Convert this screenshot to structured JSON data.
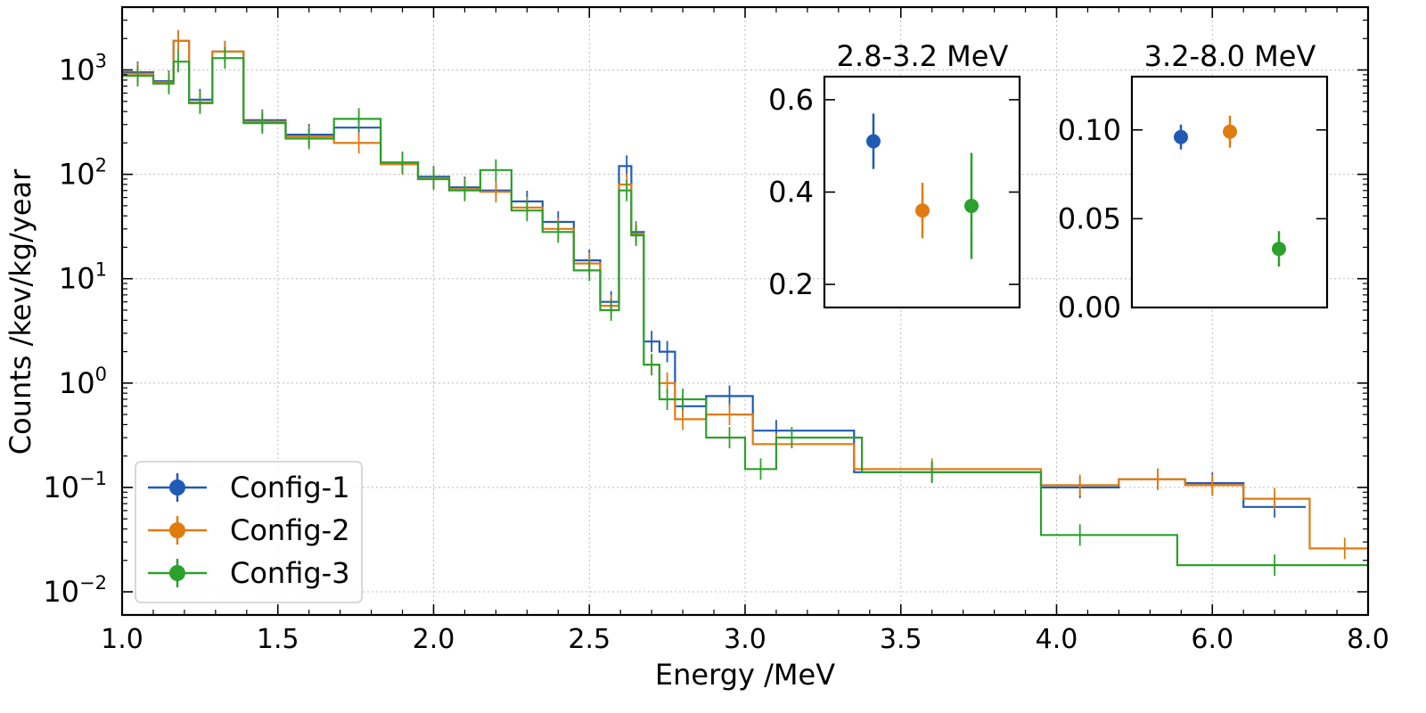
{
  "chart_data": [
    {
      "type": "line",
      "title": "",
      "xlabel": "Energy /MeV",
      "ylabel": "Counts /kev/kg/year",
      "yscale": "log",
      "xlim": [
        1.0,
        8.0
      ],
      "ylim": [
        0.006,
        4000
      ],
      "x_ticks": [
        {
          "label": "1.0",
          "value": 1.0
        },
        {
          "label": "1.5",
          "value": 1.5
        },
        {
          "label": "2.0",
          "value": 2.0
        },
        {
          "label": "2.5",
          "value": 2.5
        },
        {
          "label": "3.0",
          "value": 3.0
        },
        {
          "label": "3.5",
          "value": 3.5
        },
        {
          "label": "4.0",
          "value": 4.0
        },
        {
          "label": "6.0",
          "value": 6.0
        },
        {
          "label": "8.0",
          "value": 8.0
        }
      ],
      "y_ticks": [
        {
          "base": "10",
          "exp": "3",
          "value": 1000
        },
        {
          "base": "10",
          "exp": "2",
          "value": 100
        },
        {
          "base": "10",
          "exp": "1",
          "value": 10
        },
        {
          "base": "10",
          "exp": "0",
          "value": 1
        },
        {
          "base": "10",
          "exp": "−1",
          "value": 0.1
        },
        {
          "base": "10",
          "exp": "−2",
          "value": 0.01
        }
      ],
      "grid": true,
      "legend_position": "bottom-left",
      "series": [
        {
          "name": "Config-1",
          "color": "#1f5bb5",
          "points": [
            [
              1.05,
              950
            ],
            [
              1.15,
              780
            ],
            [
              1.18,
              1900
            ],
            [
              1.25,
              520
            ],
            [
              1.33,
              1500
            ],
            [
              1.45,
              330
            ],
            [
              1.6,
              240
            ],
            [
              1.76,
              280
            ],
            [
              1.9,
              130
            ],
            [
              2.0,
              95
            ],
            [
              2.1,
              75
            ],
            [
              2.2,
              70
            ],
            [
              2.3,
              55
            ],
            [
              2.4,
              35
            ],
            [
              2.5,
              15
            ],
            [
              2.57,
              6
            ],
            [
              2.62,
              120
            ],
            [
              2.65,
              28
            ],
            [
              2.7,
              2.5
            ],
            [
              2.75,
              2.0
            ],
            [
              2.8,
              0.6
            ],
            [
              2.95,
              0.75
            ],
            [
              3.1,
              0.35
            ],
            [
              3.6,
              0.14
            ],
            [
              4.3,
              0.1
            ],
            [
              5.3,
              0.12
            ],
            [
              6.0,
              0.11
            ],
            [
              6.8,
              0.065
            ]
          ]
        },
        {
          "name": "Config-2",
          "color": "#e07b10",
          "points": [
            [
              1.05,
              920
            ],
            [
              1.15,
              760
            ],
            [
              1.18,
              1900
            ],
            [
              1.25,
              490
            ],
            [
              1.33,
              1500
            ],
            [
              1.45,
              320
            ],
            [
              1.6,
              230
            ],
            [
              1.76,
              200
            ],
            [
              1.9,
              125
            ],
            [
              2.0,
              92
            ],
            [
              2.1,
              72
            ],
            [
              2.2,
              68
            ],
            [
              2.3,
              48
            ],
            [
              2.4,
              30
            ],
            [
              2.5,
              14
            ],
            [
              2.57,
              5.5
            ],
            [
              2.62,
              80
            ],
            [
              2.65,
              27
            ],
            [
              2.7,
              1.5
            ],
            [
              2.75,
              1.0
            ],
            [
              2.8,
              0.45
            ],
            [
              2.95,
              0.5
            ],
            [
              3.1,
              0.26
            ],
            [
              3.6,
              0.15
            ],
            [
              4.3,
              0.105
            ],
            [
              5.3,
              0.12
            ],
            [
              6.0,
              0.105
            ],
            [
              6.8,
              0.078
            ],
            [
              7.7,
              0.026
            ]
          ]
        },
        {
          "name": "Config-3",
          "color": "#2ca02c",
          "points": [
            [
              1.05,
              880
            ],
            [
              1.15,
              740
            ],
            [
              1.18,
              1200
            ],
            [
              1.25,
              480
            ],
            [
              1.33,
              1300
            ],
            [
              1.45,
              310
            ],
            [
              1.6,
              220
            ],
            [
              1.76,
              340
            ],
            [
              1.9,
              130
            ],
            [
              2.0,
              90
            ],
            [
              2.1,
              70
            ],
            [
              2.2,
              110
            ],
            [
              2.3,
              45
            ],
            [
              2.4,
              28
            ],
            [
              2.5,
              12
            ],
            [
              2.57,
              5
            ],
            [
              2.62,
              70
            ],
            [
              2.65,
              26
            ],
            [
              2.7,
              1.5
            ],
            [
              2.75,
              0.7
            ],
            [
              2.8,
              0.7
            ],
            [
              2.95,
              0.3
            ],
            [
              3.05,
              0.15
            ],
            [
              3.15,
              0.3
            ],
            [
              3.6,
              0.14
            ],
            [
              4.3,
              0.035
            ],
            [
              6.8,
              0.018
            ]
          ]
        }
      ]
    },
    {
      "type": "scatter",
      "title": "2.8-3.2 MeV",
      "ylim": [
        0.15,
        0.65
      ],
      "y_ticks": [
        "0.2",
        "0.4",
        "0.6"
      ],
      "points": [
        {
          "series": "Config-1",
          "value": 0.51,
          "err": 0.06
        },
        {
          "series": "Config-2",
          "value": 0.36,
          "err": 0.06
        },
        {
          "series": "Config-3",
          "value": 0.37,
          "err": 0.115
        }
      ]
    },
    {
      "type": "scatter",
      "title": "3.2-8.0 MeV",
      "ylim": [
        0.0,
        0.13
      ],
      "y_ticks": [
        "0.00",
        "0.05",
        "0.10"
      ],
      "points": [
        {
          "series": "Config-1",
          "value": 0.096,
          "err": 0.007
        },
        {
          "series": "Config-2",
          "value": 0.099,
          "err": 0.009
        },
        {
          "series": "Config-3",
          "value": 0.033,
          "err": 0.01
        }
      ]
    }
  ]
}
